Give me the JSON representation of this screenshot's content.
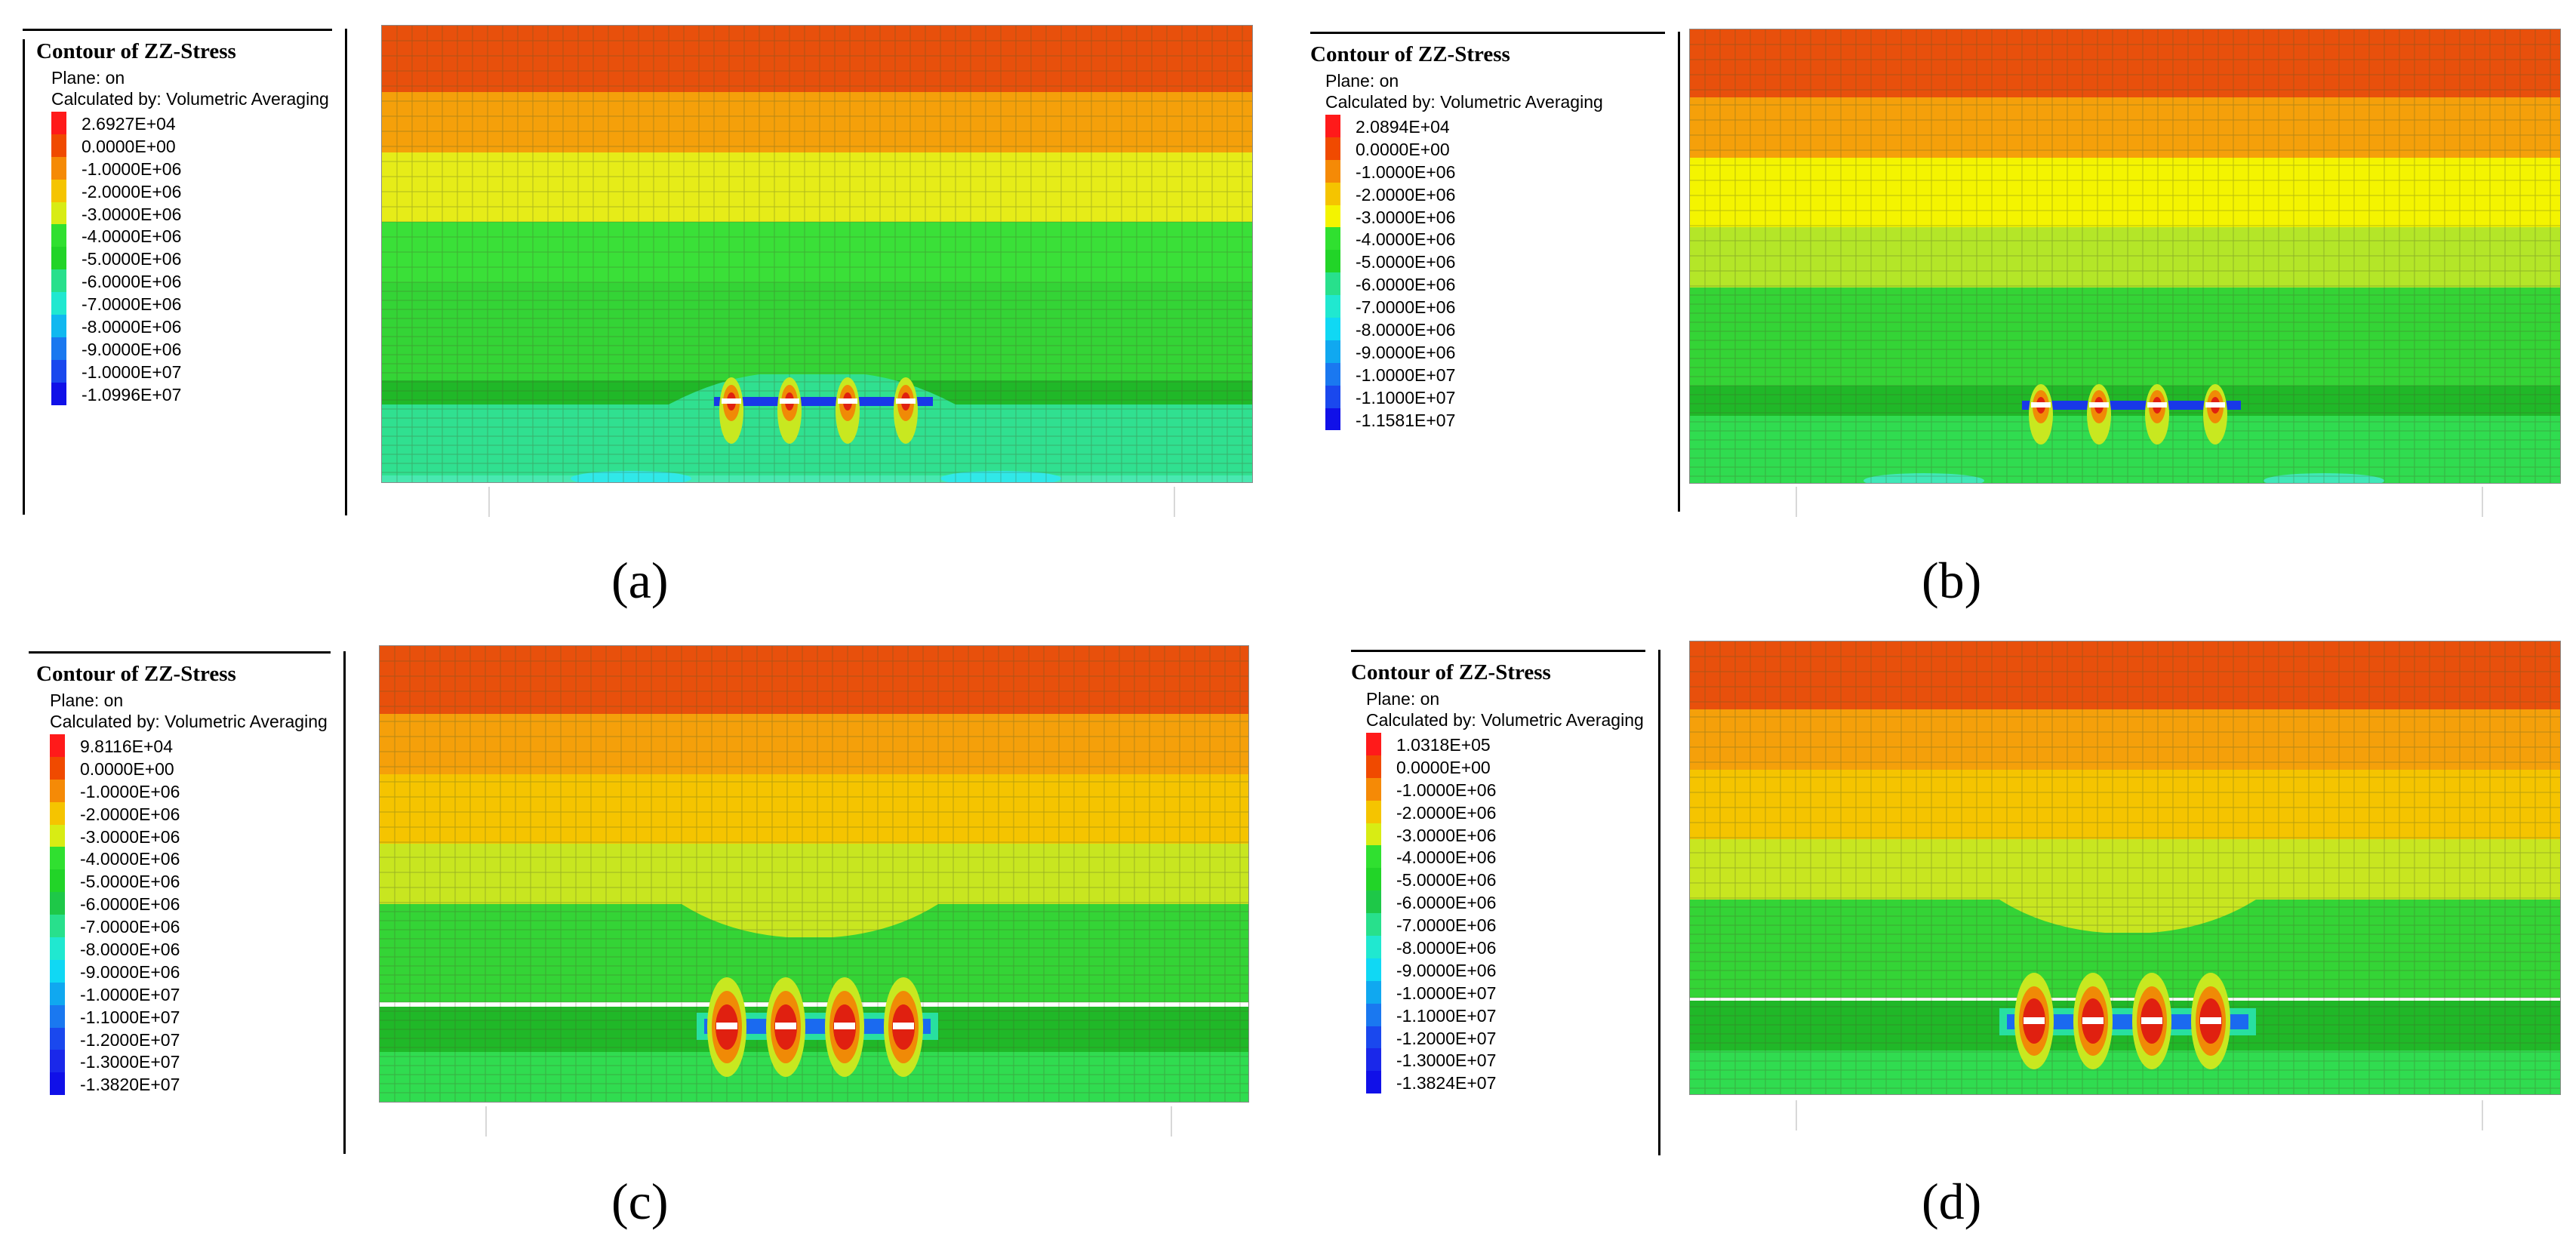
{
  "panels": [
    {
      "caption": "(a)",
      "legend": {
        "title": "Contour of ZZ-Stress",
        "plane": "Plane: on",
        "calc": "Calculated by: Volumetric Averaging",
        "levels": [
          "2.6927E+04",
          "0.0000E+00",
          "-1.0000E+06",
          "-2.0000E+06",
          "-3.0000E+06",
          "-4.0000E+06",
          "-5.0000E+06",
          "-6.0000E+06",
          "-7.0000E+06",
          "-8.0000E+06",
          "-9.0000E+06",
          "-1.0000E+07",
          "-1.0996E+07"
        ]
      }
    },
    {
      "caption": "(b)",
      "legend": {
        "title": "Contour of ZZ-Stress",
        "plane": "Plane: on",
        "calc": "Calculated by: Volumetric Averaging",
        "levels": [
          "2.0894E+04",
          "0.0000E+00",
          "-1.0000E+06",
          "-2.0000E+06",
          "-3.0000E+06",
          "-4.0000E+06",
          "-5.0000E+06",
          "-6.0000E+06",
          "-7.0000E+06",
          "-8.0000E+06",
          "-9.0000E+06",
          "-1.0000E+07",
          "-1.1000E+07",
          "-1.1581E+07"
        ]
      }
    },
    {
      "caption": "(c)",
      "legend": {
        "title": "Contour of ZZ-Stress",
        "plane": "Plane: on",
        "calc": "Calculated by: Volumetric Averaging",
        "levels": [
          "9.8116E+04",
          "0.0000E+00",
          "-1.0000E+06",
          "-2.0000E+06",
          "-3.0000E+06",
          "-4.0000E+06",
          "-5.0000E+06",
          "-6.0000E+06",
          "-7.0000E+06",
          "-8.0000E+06",
          "-9.0000E+06",
          "-1.0000E+07",
          "-1.1000E+07",
          "-1.2000E+07",
          "-1.3000E+07",
          "-1.3820E+07"
        ]
      }
    },
    {
      "caption": "(d)",
      "legend": {
        "title": "Contour of ZZ-Stress",
        "plane": "Plane: on",
        "calc": "Calculated by: Volumetric Averaging",
        "levels": [
          "1.0318E+05",
          "0.0000E+00",
          "-1.0000E+06",
          "-2.0000E+06",
          "-3.0000E+06",
          "-4.0000E+06",
          "-5.0000E+06",
          "-6.0000E+06",
          "-7.0000E+06",
          "-8.0000E+06",
          "-9.0000E+06",
          "-1.0000E+07",
          "-1.1000E+07",
          "-1.2000E+07",
          "-1.3000E+07",
          "-1.3824E+07"
        ]
      }
    }
  ],
  "colors": {
    "band_red": "#e8420c",
    "band_orange": "#f58a06",
    "band_yellow_orange": "#f5c400",
    "band_yellow": "#f4f400",
    "band_yellow_green": "#b4e628",
    "band_green": "#30e030",
    "band_green_dark": "#1cc41c",
    "band_seafoam": "#28e08c",
    "band_cyan": "#20e8e8",
    "band_blue": "#2030e8",
    "mesh": "#5a6a3a"
  }
}
